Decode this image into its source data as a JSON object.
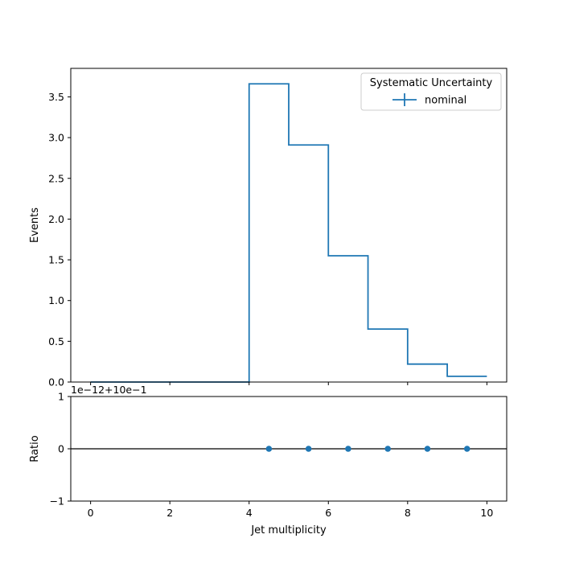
{
  "chart_data": [
    {
      "type": "line",
      "panel": "main",
      "drawstyle": "steps",
      "bin_edges": [
        0,
        1,
        2,
        3,
        4,
        5,
        6,
        7,
        8,
        9,
        10
      ],
      "series": [
        {
          "name": "nominal",
          "values": [
            0,
            0,
            0,
            0,
            3.66,
            2.91,
            1.55,
            0.65,
            0.22,
            0.07
          ],
          "color": "#1f77b4"
        }
      ],
      "ylabel": "Events",
      "xlim": [
        -0.5,
        10.5
      ],
      "ylim": [
        0,
        3.85
      ],
      "yticks": [
        "0.0",
        "0.5",
        "1.0",
        "1.5",
        "2.0",
        "2.5",
        "3.0",
        "3.5"
      ],
      "legend": {
        "title": "Systematic Uncertainty",
        "placement": "upper right",
        "entries": [
          "nominal"
        ]
      }
    },
    {
      "type": "scatter",
      "panel": "ratio",
      "series": [
        {
          "name": "nominal",
          "x": [
            4.5,
            5.5,
            6.5,
            7.5,
            8.5,
            9.5
          ],
          "y": [
            0,
            0,
            0,
            0,
            0,
            0
          ],
          "color": "#1f77b4"
        }
      ],
      "reference_line": 0,
      "offset_text": "1e−12+10e−1",
      "ylabel": "Ratio",
      "xlabel": "Jet multiplicity",
      "xlim": [
        -0.5,
        10.5
      ],
      "ylim": [
        -1,
        1
      ],
      "yticks": [
        "−1",
        "0",
        "1"
      ],
      "xticks": [
        "0",
        "2",
        "4",
        "6",
        "8",
        "10"
      ]
    }
  ]
}
